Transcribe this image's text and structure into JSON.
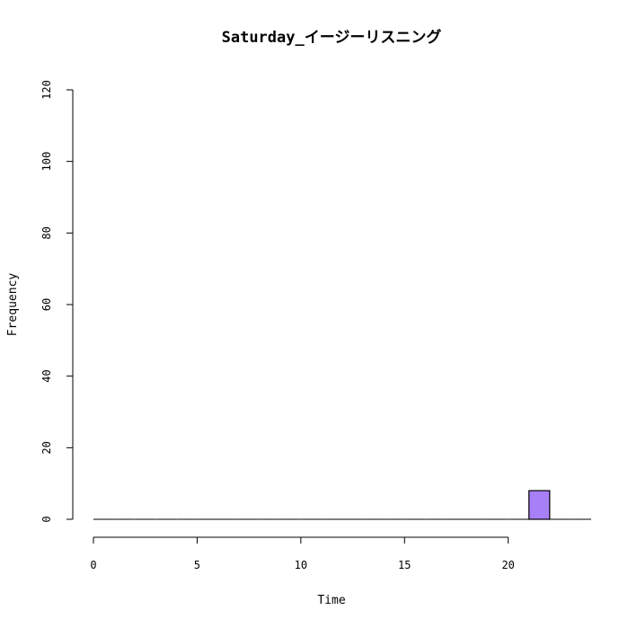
{
  "chart_data": {
    "type": "histogram",
    "title": "Saturday_イージーリスニング",
    "xlabel": "Time",
    "ylabel": "Frequency",
    "x_ticks": [
      0,
      5,
      10,
      15,
      20
    ],
    "y_ticks": [
      0,
      20,
      40,
      60,
      80,
      100,
      120
    ],
    "xlim": [
      0,
      24
    ],
    "ylim": [
      0,
      120
    ],
    "bins": [
      {
        "start": 0,
        "end": 1,
        "count": 0
      },
      {
        "start": 1,
        "end": 2,
        "count": 0
      },
      {
        "start": 2,
        "end": 3,
        "count": 0
      },
      {
        "start": 3,
        "end": 4,
        "count": 0
      },
      {
        "start": 4,
        "end": 5,
        "count": 0
      },
      {
        "start": 5,
        "end": 6,
        "count": 0
      },
      {
        "start": 6,
        "end": 7,
        "count": 0
      },
      {
        "start": 7,
        "end": 8,
        "count": 0
      },
      {
        "start": 8,
        "end": 9,
        "count": 0
      },
      {
        "start": 9,
        "end": 10,
        "count": 0
      },
      {
        "start": 10,
        "end": 11,
        "count": 0
      },
      {
        "start": 11,
        "end": 12,
        "count": 0
      },
      {
        "start": 12,
        "end": 13,
        "count": 0
      },
      {
        "start": 13,
        "end": 14,
        "count": 0
      },
      {
        "start": 14,
        "end": 15,
        "count": 0
      },
      {
        "start": 15,
        "end": 16,
        "count": 0
      },
      {
        "start": 16,
        "end": 17,
        "count": 0
      },
      {
        "start": 17,
        "end": 18,
        "count": 0
      },
      {
        "start": 18,
        "end": 19,
        "count": 0
      },
      {
        "start": 19,
        "end": 20,
        "count": 0
      },
      {
        "start": 20,
        "end": 21,
        "count": 0
      },
      {
        "start": 21,
        "end": 22,
        "count": 8
      },
      {
        "start": 22,
        "end": 23,
        "count": 0
      },
      {
        "start": 23,
        "end": 24,
        "count": 0
      }
    ],
    "bar_color": "#a77ff7",
    "bar_border_color": "#000000",
    "grid": false,
    "legend": "none"
  }
}
